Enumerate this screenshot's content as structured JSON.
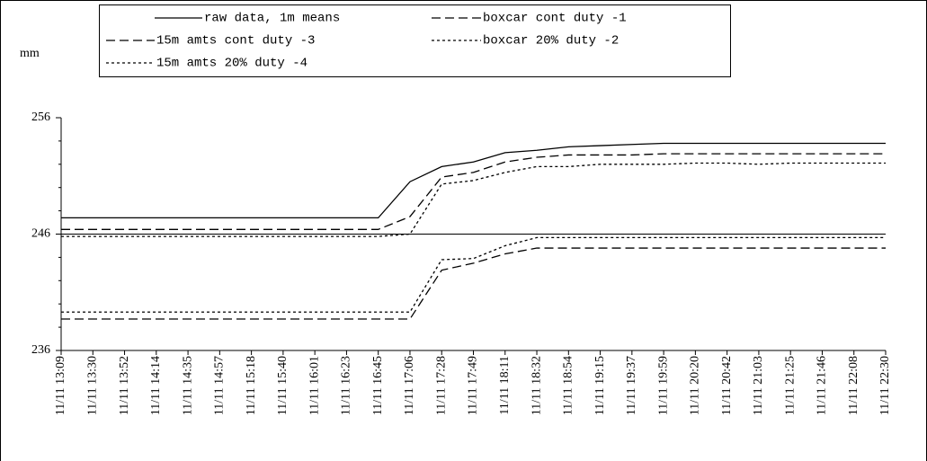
{
  "chart_data": {
    "type": "line",
    "ylabel": "mm",
    "categories": [
      "11/11 13:09",
      "11/11 13:30",
      "11/11 13:52",
      "11/11 14:14",
      "11/11 14:35",
      "11/11 14:57",
      "11/11 15:18",
      "11/11 15:40",
      "11/11 16:01",
      "11/11 16:23",
      "11/11 16:45",
      "11/11 17:06",
      "11/11 17:28",
      "11/11 17:49",
      "11/11 18:11",
      "11/11 18:32",
      "11/11 18:54",
      "11/11 19:15",
      "11/11 19:37",
      "11/11 19:59",
      "11/11 20:20",
      "11/11 20:42",
      "11/11 21:03",
      "11/11 21:25",
      "11/11 21:46",
      "11/11 22:08",
      "11/11 22:30"
    ],
    "series": [
      {
        "name": "raw data, 1m means",
        "color": "#000000",
        "dash": "solid",
        "values": [
          247.4,
          247.4,
          247.4,
          247.4,
          247.4,
          247.4,
          247.4,
          247.4,
          247.4,
          247.4,
          247.4,
          250.5,
          251.8,
          252.2,
          253.0,
          253.2,
          253.5,
          253.6,
          253.7,
          253.8,
          253.8,
          253.8,
          253.8,
          253.8,
          253.8,
          253.8,
          253.8
        ]
      },
      {
        "name": "boxcar cont duty -1",
        "color": "#000000",
        "dash": "dashed",
        "values": [
          246.4,
          246.4,
          246.4,
          246.4,
          246.4,
          246.4,
          246.4,
          246.4,
          246.4,
          246.4,
          246.4,
          247.5,
          250.9,
          251.3,
          252.2,
          252.6,
          252.8,
          252.8,
          252.8,
          252.9,
          252.9,
          252.9,
          252.9,
          252.9,
          252.9,
          252.9,
          252.9
        ]
      },
      {
        "name": "15m amts cont duty -3",
        "color": "#000000",
        "dash": "dashed",
        "values": [
          238.7,
          238.7,
          238.7,
          238.7,
          238.7,
          238.7,
          238.7,
          238.7,
          238.7,
          238.7,
          238.7,
          238.7,
          242.9,
          243.5,
          244.3,
          244.8,
          244.8,
          244.8,
          244.8,
          244.8,
          244.8,
          244.8,
          244.8,
          244.8,
          244.8,
          244.8,
          244.8
        ]
      },
      {
        "name": "boxcar 20% duty -2",
        "color": "#000000",
        "dash": "dotted",
        "values": [
          245.8,
          245.8,
          245.8,
          245.8,
          245.8,
          245.8,
          245.8,
          245.8,
          245.8,
          245.8,
          245.8,
          246.0,
          250.3,
          250.6,
          251.3,
          251.8,
          251.8,
          252.0,
          252.0,
          252.0,
          252.1,
          252.1,
          252.0,
          252.1,
          252.1,
          252.1,
          252.1
        ]
      },
      {
        "name": "15m amts 20% duty -4",
        "color": "#000000",
        "dash": "dotted",
        "values": [
          239.3,
          239.3,
          239.3,
          239.3,
          239.3,
          239.3,
          239.3,
          239.3,
          239.3,
          239.3,
          239.3,
          239.3,
          243.8,
          243.9,
          245.0,
          245.7,
          245.7,
          245.7,
          245.7,
          245.7,
          245.7,
          245.7,
          245.7,
          245.7,
          245.7,
          245.7,
          245.7
        ]
      }
    ],
    "ylim": [
      236,
      256
    ],
    "yticks": [
      236,
      246,
      256
    ],
    "yminorticks": [
      238,
      240,
      242,
      244,
      248,
      250,
      252,
      254
    ],
    "grid": true,
    "legend": "top"
  }
}
